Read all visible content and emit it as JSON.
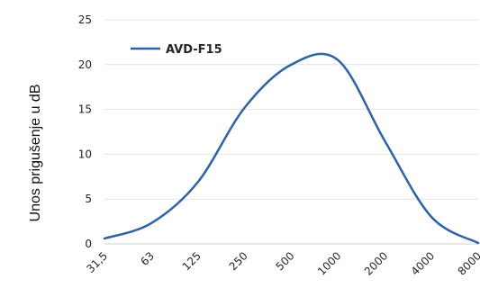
{
  "chart_data": {
    "type": "line",
    "ylabel": "Unos prigušenje u dB",
    "categories": [
      "31,5",
      "63",
      "125",
      "250",
      "500",
      "1000",
      "2000",
      "4000",
      "8000"
    ],
    "yticks": [
      "0",
      "5",
      "10",
      "15",
      "20",
      "25"
    ],
    "ylim": [
      0,
      25
    ],
    "grid": true,
    "legend_position": "top-left",
    "series": [
      {
        "name": "AVD-F15",
        "color": "#2e62a6",
        "values": [
          0.6,
          2.3,
          6.9,
          15.2,
          20.0,
          20.5,
          11.5,
          3.0,
          0.1
        ]
      }
    ]
  }
}
